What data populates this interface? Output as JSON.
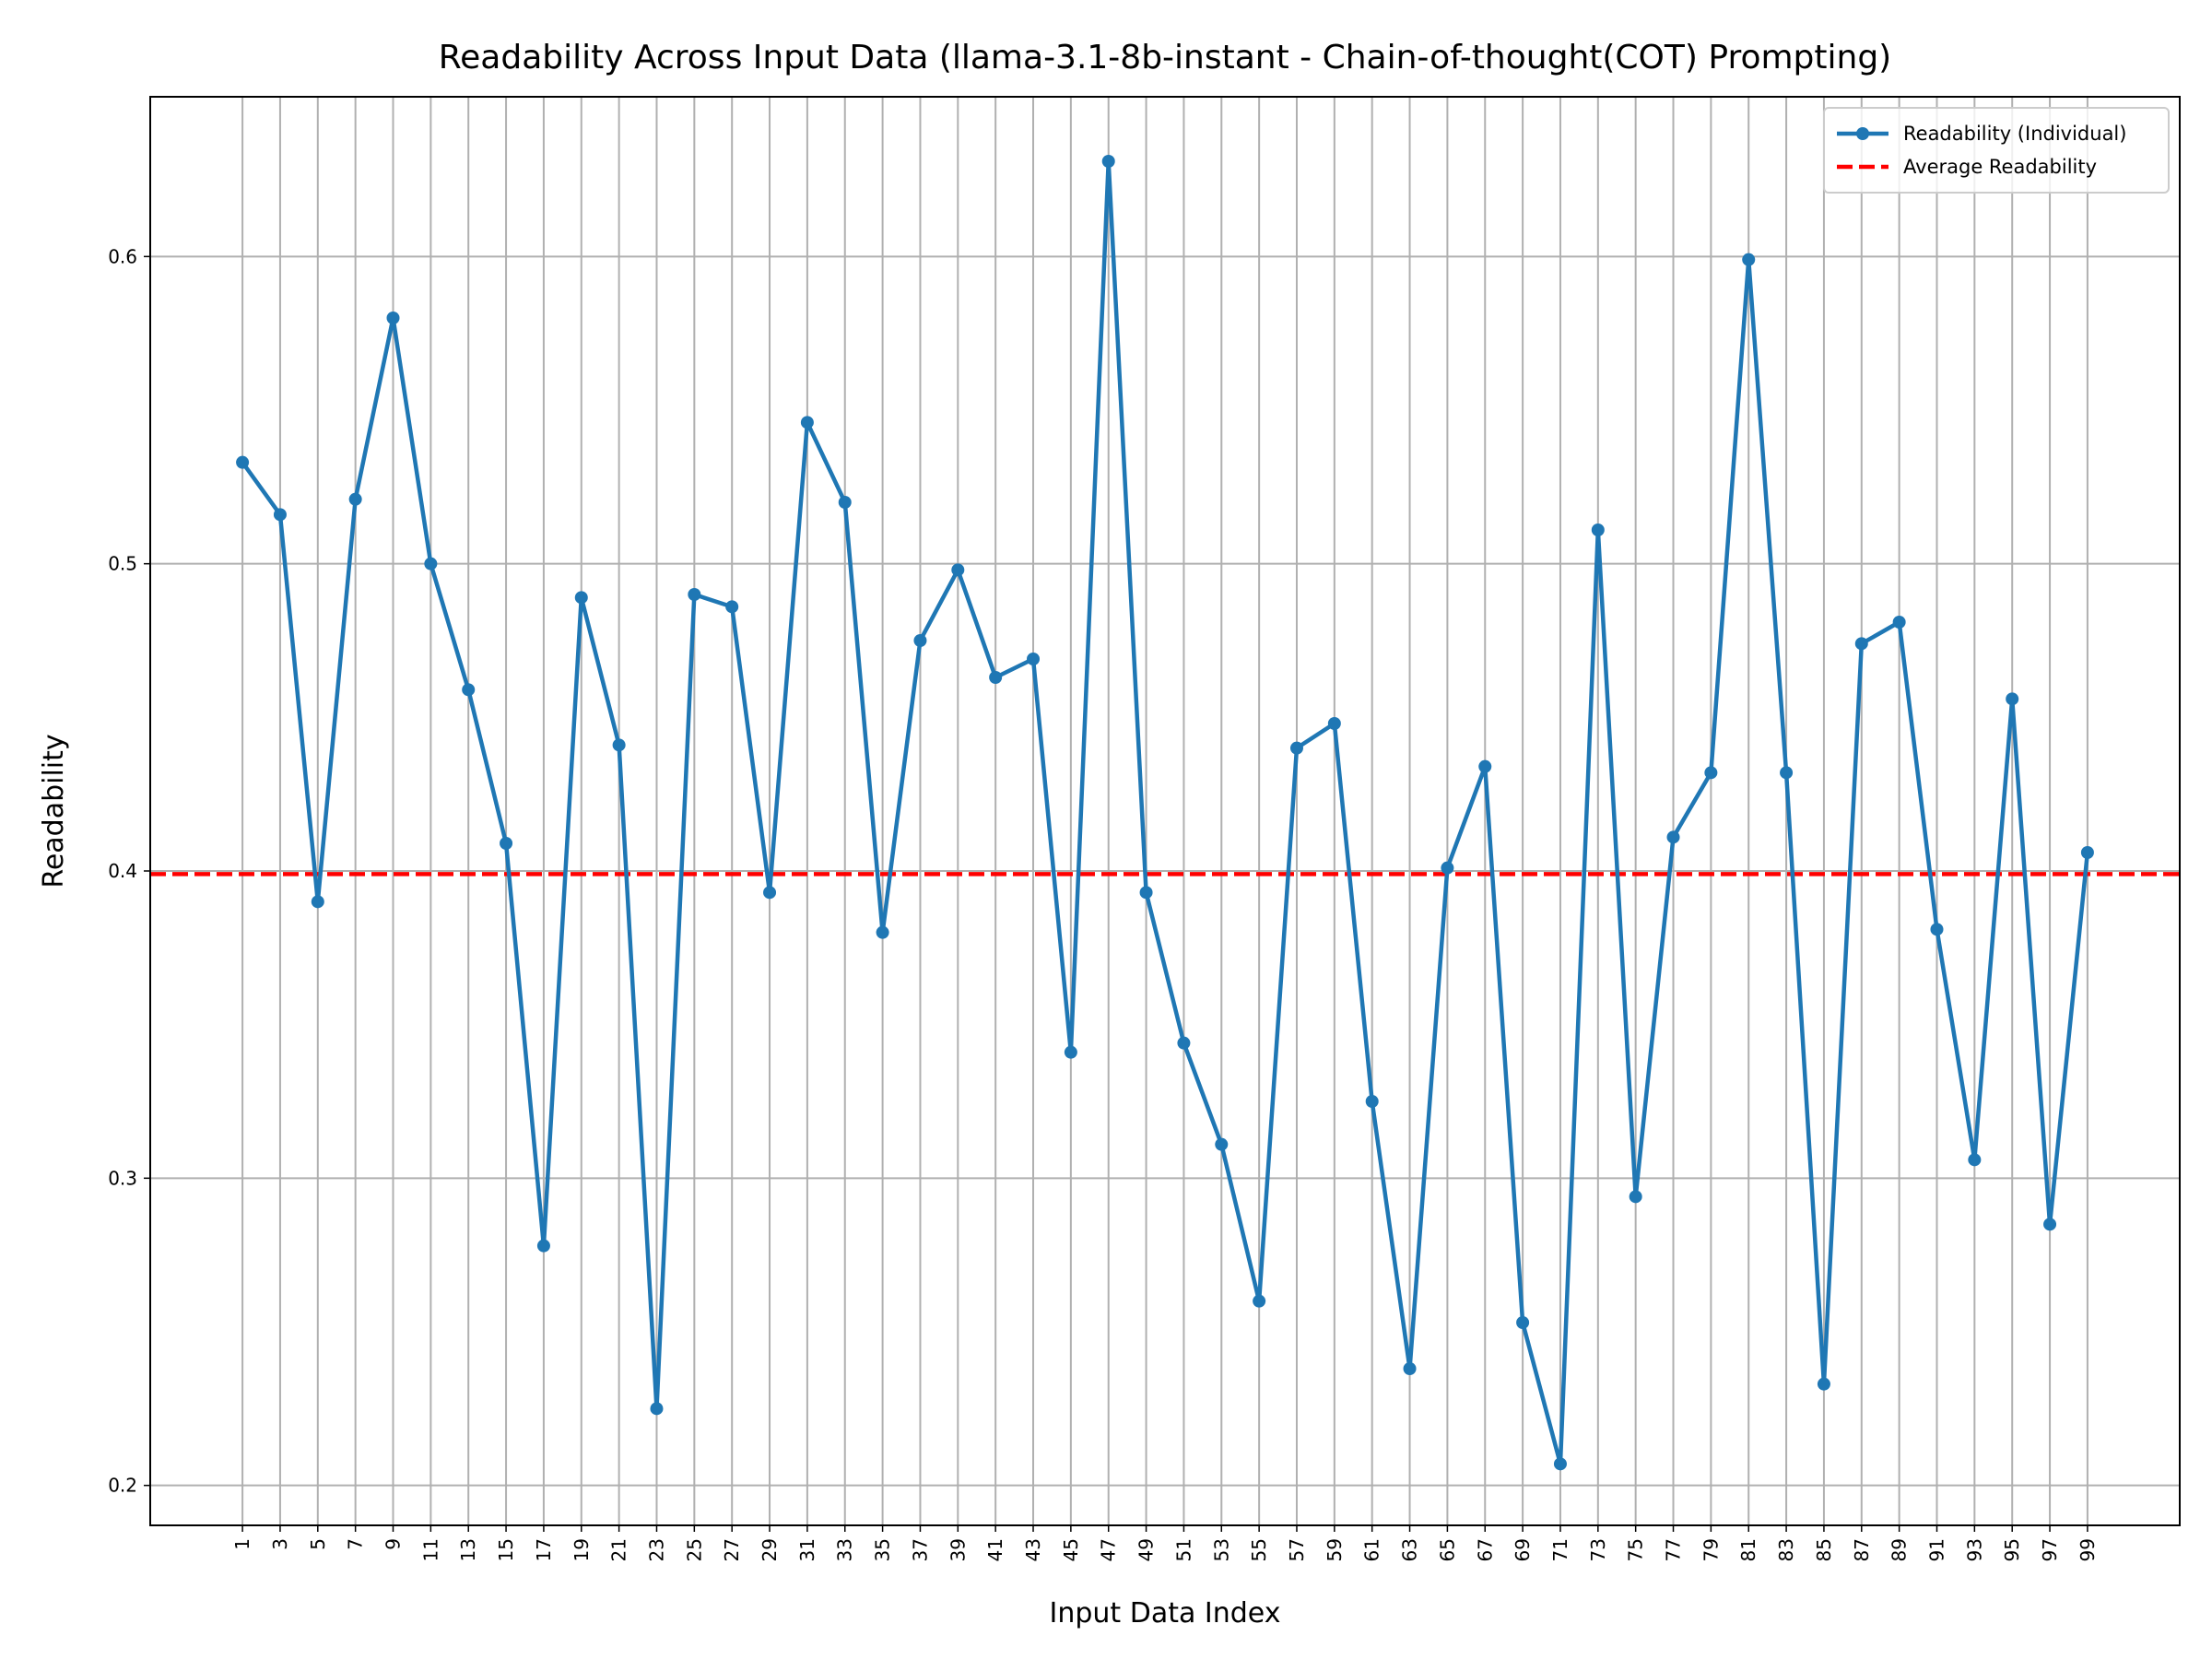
{
  "chart_data": {
    "type": "line",
    "title": "Readability Across Input Data (llama-3.1-8b-instant - Chain-of-thought(COT) Prompting)",
    "xlabel": "Input Data Index",
    "ylabel": "Readability",
    "x": [
      1,
      3,
      5,
      7,
      9,
      11,
      13,
      15,
      17,
      19,
      21,
      23,
      25,
      27,
      29,
      31,
      33,
      35,
      37,
      39,
      41,
      43,
      45,
      47,
      49,
      51,
      53,
      55,
      57,
      59,
      61,
      63,
      65,
      67,
      69,
      71,
      73,
      75,
      77,
      79,
      81,
      83,
      85,
      87,
      89,
      91,
      93,
      95,
      97,
      99
    ],
    "series": [
      {
        "name": "Readability (Individual)",
        "color": "#1f77b4",
        "marker": true,
        "values": [
          0.533,
          0.516,
          0.39,
          0.521,
          0.58,
          0.5,
          0.459,
          0.409,
          0.278,
          0.489,
          0.441,
          0.225,
          0.49,
          0.486,
          0.393,
          0.546,
          0.52,
          0.38,
          0.475,
          0.498,
          0.463,
          0.469,
          0.341,
          0.631,
          0.393,
          0.344,
          0.311,
          0.26,
          0.44,
          0.448,
          0.325,
          0.238,
          0.401,
          0.434,
          0.253,
          0.207,
          0.511,
          0.294,
          0.411,
          0.432,
          0.599,
          0.432,
          0.233,
          0.474,
          0.481,
          0.381,
          0.306,
          0.456,
          0.285,
          0.406
        ]
      }
    ],
    "hlines": [
      {
        "name": "Average Readability",
        "color": "#ff0000",
        "linestyle": "dashed",
        "value": 0.399
      }
    ],
    "xlim": [
      -3.9,
      103.9
    ],
    "ylim": [
      0.187,
      0.652
    ],
    "xticks": [
      1,
      3,
      5,
      7,
      9,
      11,
      13,
      15,
      17,
      19,
      21,
      23,
      25,
      27,
      29,
      31,
      33,
      35,
      37,
      39,
      41,
      43,
      45,
      47,
      49,
      51,
      53,
      55,
      57,
      59,
      61,
      63,
      65,
      67,
      69,
      71,
      73,
      75,
      77,
      79,
      81,
      83,
      85,
      87,
      89,
      91,
      93,
      95,
      97,
      99
    ],
    "yticks": [
      {
        "value": 0.2,
        "label": "0.2"
      },
      {
        "value": 0.3,
        "label": "0.3"
      },
      {
        "value": 0.4,
        "label": "0.4"
      },
      {
        "value": 0.5,
        "label": "0.5"
      },
      {
        "value": 0.6,
        "label": "0.6"
      }
    ],
    "grid": true,
    "legend": "upper right"
  }
}
